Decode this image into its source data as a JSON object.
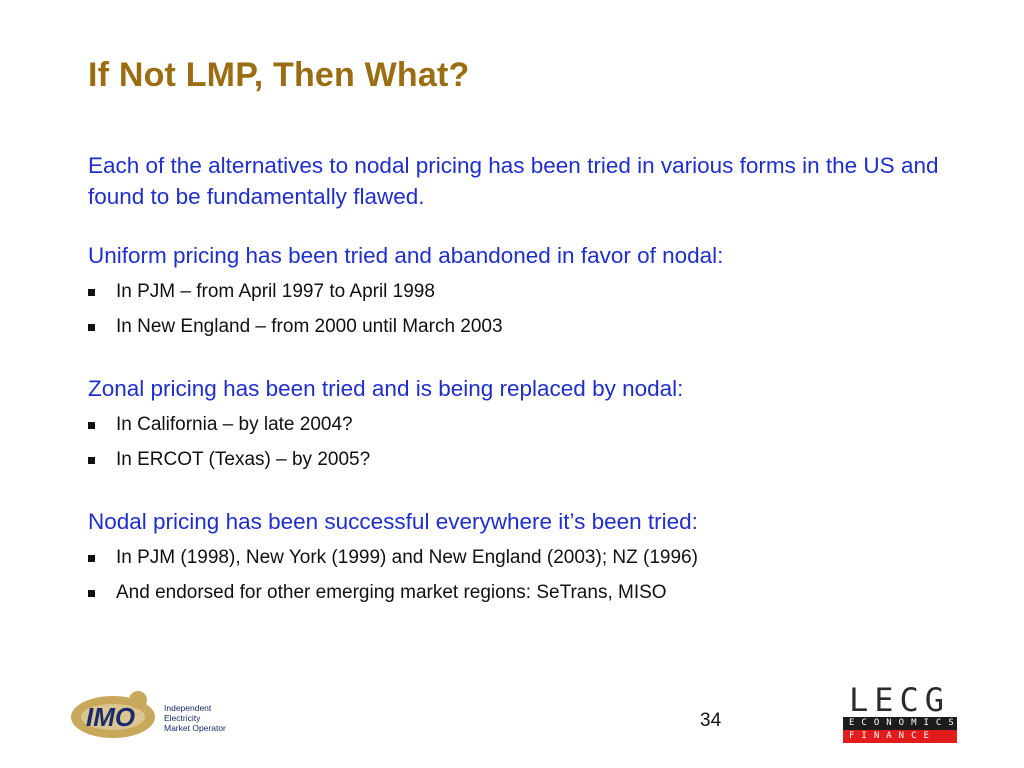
{
  "slide": {
    "title": "If Not LMP, Then What?",
    "intro": "Each of the alternatives to nodal pricing has been tried in various forms in the US and found to be fundamentally flawed.",
    "sections": [
      {
        "heading": "Uniform pricing has been tried and abandoned in favor of nodal:",
        "bullets": [
          "In PJM – from April 1997 to April 1998",
          "In New England – from 2000 until March 2003"
        ]
      },
      {
        "heading": "Zonal pricing has been tried and is being replaced by nodal:",
        "bullets": [
          "In California – by late 2004?",
          "In ERCOT (Texas) – by 2005?"
        ]
      },
      {
        "heading": "Nodal pricing has been successful everywhere it’s been tried:",
        "bullets": [
          "In PJM (1998), New York (1999) and New England (2003); NZ (1996)",
          "And endorsed for other emerging market regions: SeTrans, MISO"
        ]
      }
    ],
    "page_number": "34"
  },
  "footer": {
    "imo_logo": {
      "mark": "IMO",
      "lines": [
        "Independent",
        "Electricity",
        "Market Operator"
      ]
    },
    "lecg_logo": {
      "word": "LECG",
      "band_1": "ECONOMICS",
      "band_2": "FINANCE"
    }
  },
  "colors": {
    "title": "#9a6d12",
    "body_blue": "#1f2fcc",
    "bullet_text": "#111111",
    "imo_gold": "#c8a85a",
    "imo_navy": "#1b2a6b",
    "lecg_red": "#e21c1c"
  },
  "icons": {
    "bullet_marker": "square-bullet-icon"
  }
}
